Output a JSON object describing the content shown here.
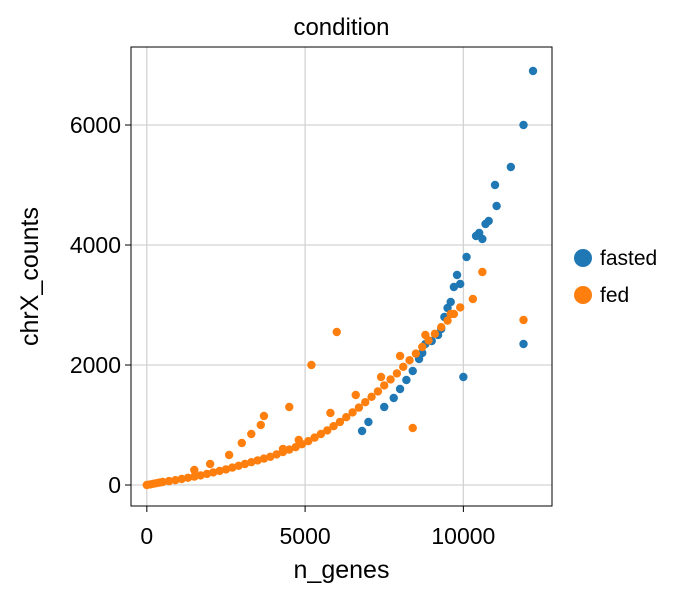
{
  "chart_data": {
    "type": "scatter",
    "title": "condition",
    "xlabel": "n_genes",
    "ylabel": "chrX_counts",
    "xlim": [
      -500,
      12800
    ],
    "ylim": [
      -350,
      7300
    ],
    "xticks": [
      0,
      5000,
      10000
    ],
    "xtick_labels": [
      "0",
      "5000",
      "10000"
    ],
    "yticks": [
      0,
      2000,
      4000,
      6000
    ],
    "ytick_labels": [
      "0",
      "2000",
      "4000",
      "6000"
    ],
    "grid": true,
    "legend_position": "right",
    "series": [
      {
        "name": "fasted",
        "color": "#1f77b4",
        "x": [
          12200,
          11900,
          11500,
          11000,
          11050,
          10800,
          10700,
          10500,
          10600,
          10400,
          10100,
          9900,
          9800,
          9700,
          9600,
          9500,
          9400,
          9300,
          9200,
          9000,
          8800,
          8700,
          8600,
          8400,
          8200,
          8000,
          7800,
          7500,
          7000,
          6800,
          11900,
          10000
        ],
        "y": [
          6900,
          6000,
          5300,
          5000,
          4650,
          4400,
          4350,
          4200,
          4100,
          4150,
          3800,
          3350,
          3500,
          3300,
          3050,
          2950,
          2800,
          2600,
          2500,
          2400,
          2350,
          2200,
          2100,
          1900,
          1750,
          1600,
          1450,
          1300,
          1050,
          900,
          2350,
          1800
        ]
      },
      {
        "name": "fed",
        "color": "#ff7f0e",
        "x": [
          0,
          100,
          200,
          300,
          400,
          500,
          700,
          900,
          1100,
          1300,
          1500,
          1700,
          1900,
          2100,
          2300,
          2500,
          2700,
          2900,
          3100,
          3300,
          3500,
          3700,
          3900,
          4100,
          4300,
          4500,
          4700,
          4900,
          5100,
          5300,
          5500,
          5700,
          5900,
          6100,
          6300,
          6500,
          6700,
          6900,
          7100,
          7300,
          7500,
          7700,
          7900,
          8100,
          8300,
          8500,
          8700,
          8900,
          9100,
          9300,
          9500,
          9700,
          9900,
          10300,
          10600,
          11900,
          6000,
          5200,
          3700,
          4500,
          8400,
          3000,
          3300,
          3600,
          4300,
          4800,
          5800,
          6600,
          7400,
          8000,
          8800,
          9600,
          2000,
          2600,
          1500
        ],
        "y": [
          0,
          10,
          20,
          30,
          40,
          50,
          65,
          80,
          100,
          120,
          140,
          160,
          185,
          210,
          235,
          260,
          290,
          320,
          350,
          380,
          410,
          440,
          470,
          510,
          550,
          590,
          630,
          680,
          730,
          790,
          850,
          910,
          980,
          1050,
          1130,
          1210,
          1290,
          1380,
          1470,
          1560,
          1660,
          1760,
          1860,
          1970,
          2080,
          2190,
          2300,
          2410,
          2520,
          2630,
          2740,
          2850,
          2960,
          3100,
          3550,
          2750,
          2550,
          2000,
          1150,
          1300,
          950,
          700,
          850,
          1000,
          600,
          750,
          1200,
          1500,
          1800,
          2150,
          2500,
          2850,
          350,
          500,
          250
        ]
      }
    ]
  }
}
